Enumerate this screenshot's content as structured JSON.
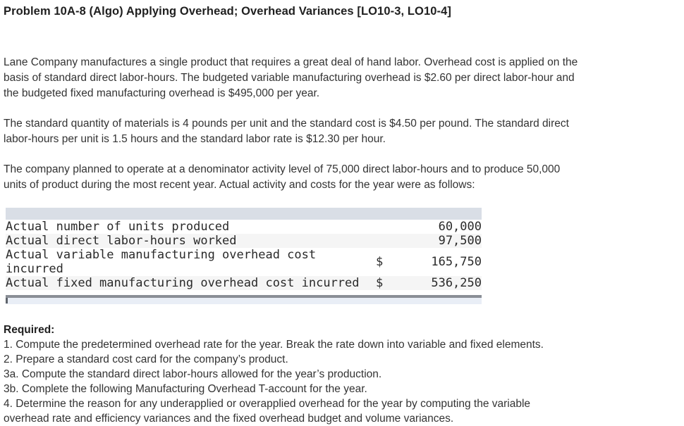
{
  "title": "Problem 10A-8 (Algo) Applying Overhead; Overhead Variances [LO10-3, LO10-4]",
  "paragraphs": [
    "Lane Company manufactures a single product that requires a great deal of hand labor. Overhead cost is applied on the\nbasis of standard direct labor-hours. The budgeted variable manufacturing overhead is $2.60 per direct labor-hour and\nthe budgeted fixed manufacturing overhead is $495,000 per year.",
    "The standard quantity of materials is 4 pounds per unit and the standard cost is $4.50 per pound. The standard direct\nlabor-hours per unit is 1.5 hours and the standard labor rate is $12.30 per hour.",
    "The company planned to operate at a denominator activity level of 75,000 direct labor-hours and to produce 50,000\nunits of product during the most recent year. Actual activity and costs for the year were as follows:"
  ],
  "table": {
    "rows": [
      {
        "label": "Actual number of units produced",
        "currency": "",
        "value": "60,000"
      },
      {
        "label": "Actual direct labor-hours worked",
        "currency": "",
        "value": "97,500"
      },
      {
        "label": "Actual variable manufacturing overhead cost incurred",
        "currency": "$",
        "value": "165,750"
      },
      {
        "label": "Actual fixed manufacturing overhead cost incurred",
        "currency": "$",
        "value": "536,250"
      }
    ]
  },
  "required": {
    "heading": "Required:",
    "items": [
      "1. Compute the predetermined overhead rate for the year. Break the rate down into variable and fixed elements.",
      "2. Prepare a standard cost card for the company’s product.",
      "3a. Compute the standard direct labor-hours allowed for the year’s production.",
      "3b. Complete the following Manufacturing Overhead T-account for the year.",
      "4. Determine the reason for any underapplied or overapplied overhead for the year by computing the variable\noverhead rate and efficiency variances and the fixed overhead budget and volume variances."
    ]
  },
  "colors": {
    "table_header_bg": "#d9dee6",
    "table_alt_row_bg": "#f5f5f5",
    "scrollbar_edge": "#8a8e96",
    "scrollbar_track": "#e9eef6",
    "scrollbar_thumb": "#5f646b",
    "text": "#333333",
    "title_text": "#1f1f1f"
  }
}
